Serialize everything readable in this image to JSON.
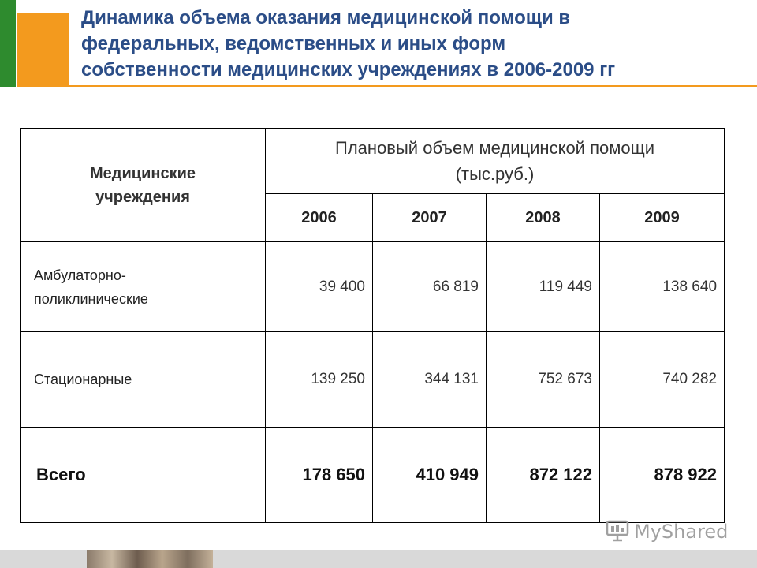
{
  "title": "Динамика объема оказания медицинской помощи в\nфедеральных, ведомственных и иных форм\nсобственности медицинских учреждениях в 2006-2009 гг",
  "table": {
    "header_institutions": "Медицинские\nучреждения",
    "header_plan": "Плановый объем медицинской помощи\n(тыс.руб.)",
    "years": [
      "2006",
      "2007",
      "2008",
      "2009"
    ],
    "rows": [
      {
        "label": "Амбулаторно-\nполиклинические",
        "values": [
          "39 400",
          "66 819",
          "119 449",
          "138 640"
        ]
      },
      {
        "label": "Стационарные",
        "values": [
          "139 250",
          "344 131",
          "752 673",
          "740 282"
        ]
      }
    ],
    "total": {
      "label": "Всего",
      "values": [
        "178 650",
        "410 949",
        "872 122",
        "878 922"
      ]
    }
  },
  "watermark": {
    "text": "MyShared",
    "icon": "presentation-board-icon"
  },
  "colors": {
    "title": "#2b4d87",
    "accent_orange": "#f39a1e",
    "accent_green": "#2e8b2e"
  }
}
